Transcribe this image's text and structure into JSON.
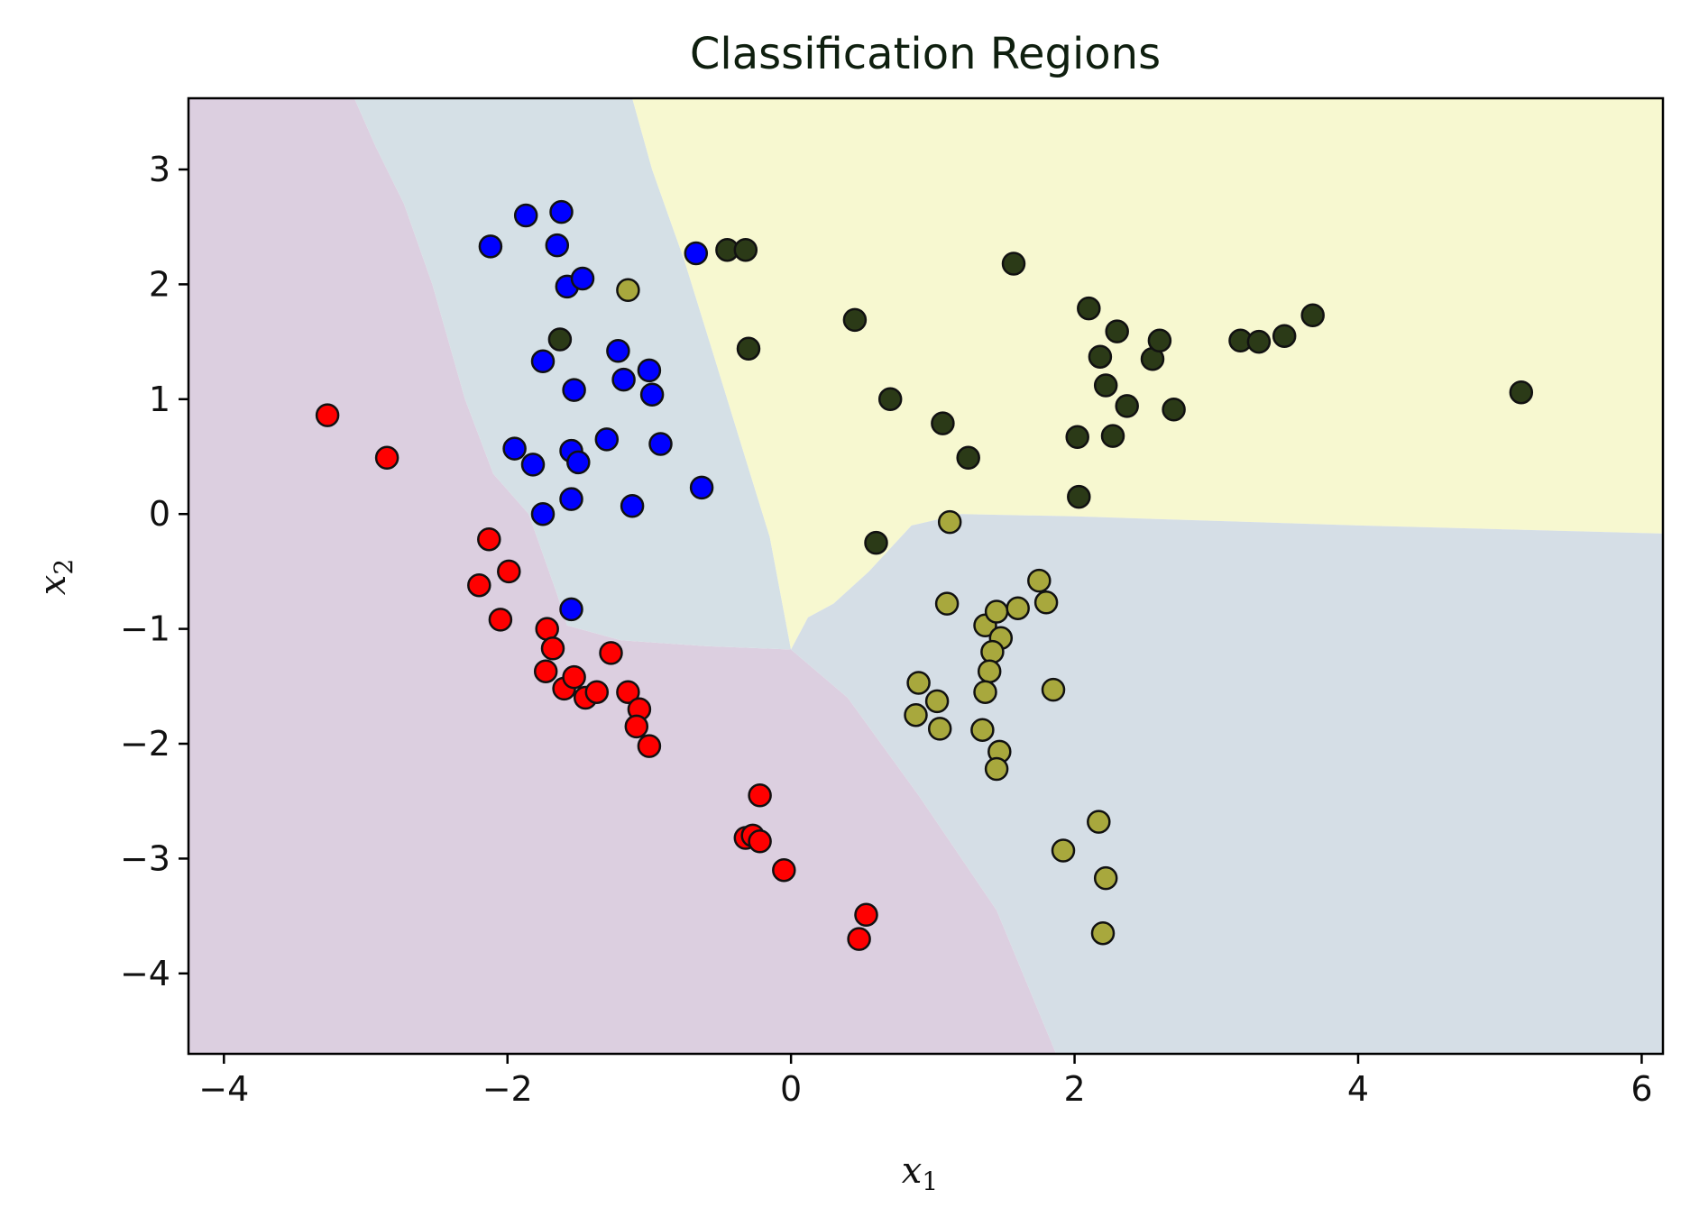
{
  "chart_data": {
    "type": "scatter",
    "title": "Classification Regions",
    "xlabel": "x",
    "xlabel_sub": "1",
    "ylabel": "x",
    "ylabel_sub": "2",
    "xlim": [
      -4.25,
      6.15
    ],
    "ylim": [
      -4.7,
      3.62
    ],
    "xticks": [
      -4,
      -2,
      0,
      2,
      4,
      6
    ],
    "yticks": [
      -4,
      -3,
      -2,
      -1,
      0,
      1,
      2,
      3
    ],
    "grid": false,
    "legend": "none",
    "regions": [
      {
        "class": "red",
        "color": "#dccfe0",
        "polygon": [
          [
            -4.25,
            3.62
          ],
          [
            -3.08,
            3.62
          ],
          [
            -2.93,
            3.2
          ],
          [
            -2.73,
            2.7
          ],
          [
            -2.53,
            2.0
          ],
          [
            -2.3,
            1.0
          ],
          [
            -2.1,
            0.35
          ],
          [
            -1.85,
            0.0
          ],
          [
            -1.65,
            -0.7
          ],
          [
            -1.58,
            -0.97
          ],
          [
            -1.2,
            -1.1
          ],
          [
            -0.6,
            -1.15
          ],
          [
            0.0,
            -1.18
          ],
          [
            0.4,
            -1.6
          ],
          [
            0.9,
            -2.45
          ],
          [
            1.45,
            -3.45
          ],
          [
            1.87,
            -4.7
          ],
          [
            -4.25,
            -4.7
          ]
        ]
      },
      {
        "class": "blue",
        "color": "#d5e0e6",
        "polygon": [
          [
            -3.08,
            3.62
          ],
          [
            -1.12,
            3.62
          ],
          [
            -0.98,
            3.0
          ],
          [
            -0.75,
            2.2
          ],
          [
            -0.55,
            1.4
          ],
          [
            -0.35,
            0.6
          ],
          [
            -0.15,
            -0.2
          ],
          [
            0.0,
            -1.18
          ],
          [
            -0.6,
            -1.15
          ],
          [
            -1.2,
            -1.1
          ],
          [
            -1.58,
            -0.97
          ],
          [
            -1.65,
            -0.7
          ],
          [
            -1.85,
            0.0
          ],
          [
            -2.1,
            0.35
          ],
          [
            -2.3,
            1.0
          ],
          [
            -2.53,
            2.0
          ],
          [
            -2.73,
            2.7
          ],
          [
            -2.93,
            3.2
          ]
        ]
      },
      {
        "class": "dark",
        "color": "#f7f8d0",
        "polygon": [
          [
            -1.12,
            3.62
          ],
          [
            6.15,
            3.62
          ],
          [
            6.15,
            -0.17
          ],
          [
            4.0,
            -0.1
          ],
          [
            2.0,
            -0.02
          ],
          [
            1.2,
            0.0
          ],
          [
            0.85,
            -0.1
          ],
          [
            0.55,
            -0.5
          ],
          [
            0.3,
            -0.78
          ],
          [
            0.12,
            -0.9
          ],
          [
            0.0,
            -1.18
          ],
          [
            -0.15,
            -0.2
          ],
          [
            -0.35,
            0.6
          ],
          [
            -0.55,
            1.4
          ],
          [
            -0.75,
            2.2
          ],
          [
            -0.98,
            3.0
          ]
        ]
      },
      {
        "class": "olive",
        "color": "#d5dee6",
        "polygon": [
          [
            0.0,
            -1.18
          ],
          [
            0.12,
            -0.9
          ],
          [
            0.3,
            -0.78
          ],
          [
            0.55,
            -0.5
          ],
          [
            0.85,
            -0.1
          ],
          [
            1.2,
            0.0
          ],
          [
            2.0,
            -0.02
          ],
          [
            4.0,
            -0.1
          ],
          [
            6.15,
            -0.17
          ],
          [
            6.15,
            -4.7
          ],
          [
            1.87,
            -4.7
          ],
          [
            1.45,
            -3.45
          ],
          [
            0.9,
            -2.45
          ],
          [
            0.4,
            -1.6
          ]
        ]
      }
    ],
    "series": [
      {
        "class": "blue",
        "color": "#0000ff",
        "points": [
          [
            -2.12,
            2.33
          ],
          [
            -1.87,
            2.6
          ],
          [
            -1.62,
            2.63
          ],
          [
            -1.65,
            2.34
          ],
          [
            -1.58,
            1.98
          ],
          [
            -1.47,
            2.05
          ],
          [
            -1.75,
            1.33
          ],
          [
            -1.22,
            1.42
          ],
          [
            -1.18,
            1.17
          ],
          [
            -1.0,
            1.25
          ],
          [
            -0.98,
            1.04
          ],
          [
            -1.53,
            1.08
          ],
          [
            -1.95,
            0.57
          ],
          [
            -1.82,
            0.43
          ],
          [
            -1.55,
            0.55
          ],
          [
            -1.5,
            0.45
          ],
          [
            -1.3,
            0.65
          ],
          [
            -0.92,
            0.61
          ],
          [
            -1.75,
            0.0
          ],
          [
            -1.55,
            0.13
          ],
          [
            -1.12,
            0.07
          ],
          [
            -0.63,
            0.23
          ],
          [
            -1.55,
            -0.83
          ],
          [
            -0.67,
            2.27
          ]
        ]
      },
      {
        "class": "red",
        "color": "#ff0000",
        "points": [
          [
            -3.27,
            0.86
          ],
          [
            -2.85,
            0.49
          ],
          [
            -2.13,
            -0.22
          ],
          [
            -1.99,
            -0.5
          ],
          [
            -2.2,
            -0.62
          ],
          [
            -2.05,
            -0.92
          ],
          [
            -1.72,
            -1.0
          ],
          [
            -1.68,
            -1.17
          ],
          [
            -1.73,
            -1.37
          ],
          [
            -1.6,
            -1.52
          ],
          [
            -1.53,
            -1.42
          ],
          [
            -1.45,
            -1.6
          ],
          [
            -1.37,
            -1.55
          ],
          [
            -1.27,
            -1.21
          ],
          [
            -1.15,
            -1.55
          ],
          [
            -1.07,
            -1.7
          ],
          [
            -1.09,
            -1.85
          ],
          [
            -1.0,
            -2.02
          ],
          [
            -0.22,
            -2.45
          ],
          [
            -0.32,
            -2.82
          ],
          [
            -0.27,
            -2.8
          ],
          [
            -0.22,
            -2.85
          ],
          [
            -0.05,
            -3.1
          ],
          [
            0.53,
            -3.49
          ],
          [
            0.48,
            -3.7
          ]
        ]
      },
      {
        "class": "dark",
        "color": "#2b3a17",
        "points": [
          [
            -0.45,
            2.3
          ],
          [
            -0.32,
            2.3
          ],
          [
            -0.3,
            1.44
          ],
          [
            -1.63,
            1.52
          ],
          [
            0.45,
            1.69
          ],
          [
            0.7,
            1.0
          ],
          [
            1.07,
            0.79
          ],
          [
            1.25,
            0.49
          ],
          [
            0.6,
            -0.25
          ],
          [
            1.57,
            2.18
          ],
          [
            2.1,
            1.79
          ],
          [
            2.18,
            1.37
          ],
          [
            2.3,
            1.59
          ],
          [
            2.22,
            1.12
          ],
          [
            2.37,
            0.94
          ],
          [
            2.02,
            0.67
          ],
          [
            2.27,
            0.68
          ],
          [
            2.03,
            0.15
          ],
          [
            2.55,
            1.35
          ],
          [
            2.6,
            1.51
          ],
          [
            2.7,
            0.91
          ],
          [
            3.17,
            1.51
          ],
          [
            3.3,
            1.5
          ],
          [
            3.48,
            1.55
          ],
          [
            3.68,
            1.73
          ],
          [
            5.15,
            1.06
          ]
        ]
      },
      {
        "class": "olive",
        "color": "#a8a83d",
        "points": [
          [
            -1.15,
            1.95
          ],
          [
            1.12,
            -0.07
          ],
          [
            1.1,
            -0.78
          ],
          [
            1.37,
            -0.97
          ],
          [
            1.45,
            -0.85
          ],
          [
            1.6,
            -0.82
          ],
          [
            1.48,
            -1.08
          ],
          [
            1.42,
            -1.2
          ],
          [
            1.4,
            -1.37
          ],
          [
            1.37,
            -1.55
          ],
          [
            1.75,
            -0.58
          ],
          [
            1.8,
            -0.77
          ],
          [
            1.85,
            -1.53
          ],
          [
            0.9,
            -1.47
          ],
          [
            1.03,
            -1.63
          ],
          [
            0.88,
            -1.75
          ],
          [
            1.05,
            -1.87
          ],
          [
            1.35,
            -1.88
          ],
          [
            1.47,
            -2.07
          ],
          [
            1.45,
            -2.22
          ],
          [
            2.17,
            -2.68
          ],
          [
            1.92,
            -2.93
          ],
          [
            2.22,
            -3.17
          ],
          [
            2.2,
            -3.65
          ]
        ]
      }
    ]
  }
}
